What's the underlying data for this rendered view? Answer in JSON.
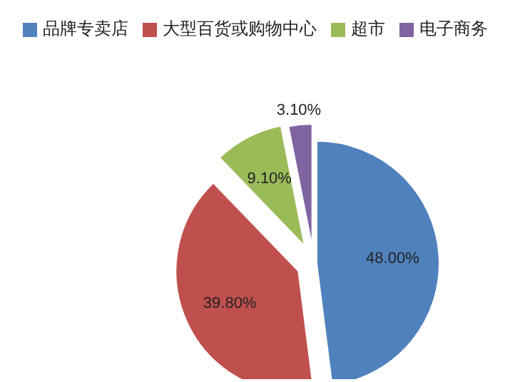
{
  "chart_data": {
    "type": "pie",
    "categories": [
      "品牌专卖店",
      "大型百货或购物中心",
      "超市",
      "电子商务"
    ],
    "values": [
      48.0,
      39.8,
      9.1,
      3.1
    ],
    "colors": [
      "#4f81bd",
      "#c0504d",
      "#9bbb59",
      "#8064a2"
    ],
    "value_labels": [
      "48.00%",
      "39.80%",
      "9.10%",
      "3.10%"
    ],
    "legend": "top"
  }
}
